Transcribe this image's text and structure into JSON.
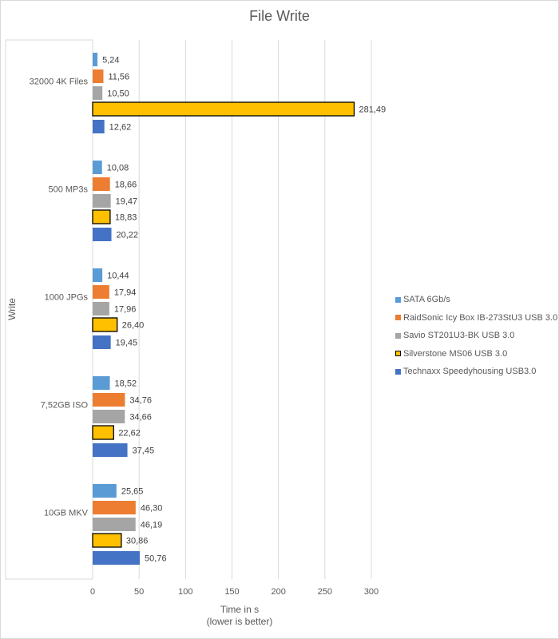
{
  "chart_data": {
    "type": "bar",
    "orientation": "horizontal",
    "title": "File Write",
    "xlabel": "Time in s",
    "xlabel_note": "(lower is better)",
    "ylabel": "Write",
    "xlim": [
      0,
      300
    ],
    "xticks": [
      "0",
      "50",
      "100",
      "150",
      "200",
      "250",
      "300"
    ],
    "grid": true,
    "legend_position": "right",
    "categories": [
      "32000 4K Files",
      "500 MP3s",
      "1000 JPGs",
      "7,52GB ISO",
      "10GB MKV"
    ],
    "series": [
      {
        "name": "SATA 6Gb/s",
        "color": "#5B9BD5",
        "values": [
          5.24,
          10.08,
          10.44,
          18.52,
          25.65
        ],
        "labels": [
          "5,24",
          "10,08",
          "10,44",
          "18,52",
          "25,65"
        ]
      },
      {
        "name": "RaidSonic Icy Box IB-273StU3 USB 3.0",
        "color": "#ED7D31",
        "values": [
          11.56,
          18.66,
          17.94,
          34.76,
          46.3
        ],
        "labels": [
          "11,56",
          "18,66",
          "17,94",
          "34,76",
          "46,30"
        ]
      },
      {
        "name": "Savio ST201U3-BK USB 3.0",
        "color": "#A5A5A5",
        "values": [
          10.5,
          19.47,
          17.96,
          34.66,
          46.19
        ],
        "labels": [
          "10,50",
          "19,47",
          "17,96",
          "34,66",
          "46,19"
        ]
      },
      {
        "name": "Silverstone MS06 USB 3.0",
        "color": "#FFC000",
        "outline": "#000000",
        "values": [
          281.49,
          18.83,
          26.4,
          22.62,
          30.86
        ],
        "labels": [
          "281,49",
          "18,83",
          "26,40",
          "22,62",
          "30,86"
        ]
      },
      {
        "name": "Technaxx Speedyhousing USB3.0",
        "color": "#4472C4",
        "values": [
          12.62,
          20.22,
          19.45,
          37.45,
          50.76
        ],
        "labels": [
          "12,62",
          "20,22",
          "19,45",
          "37,45",
          "50,76"
        ]
      }
    ]
  }
}
